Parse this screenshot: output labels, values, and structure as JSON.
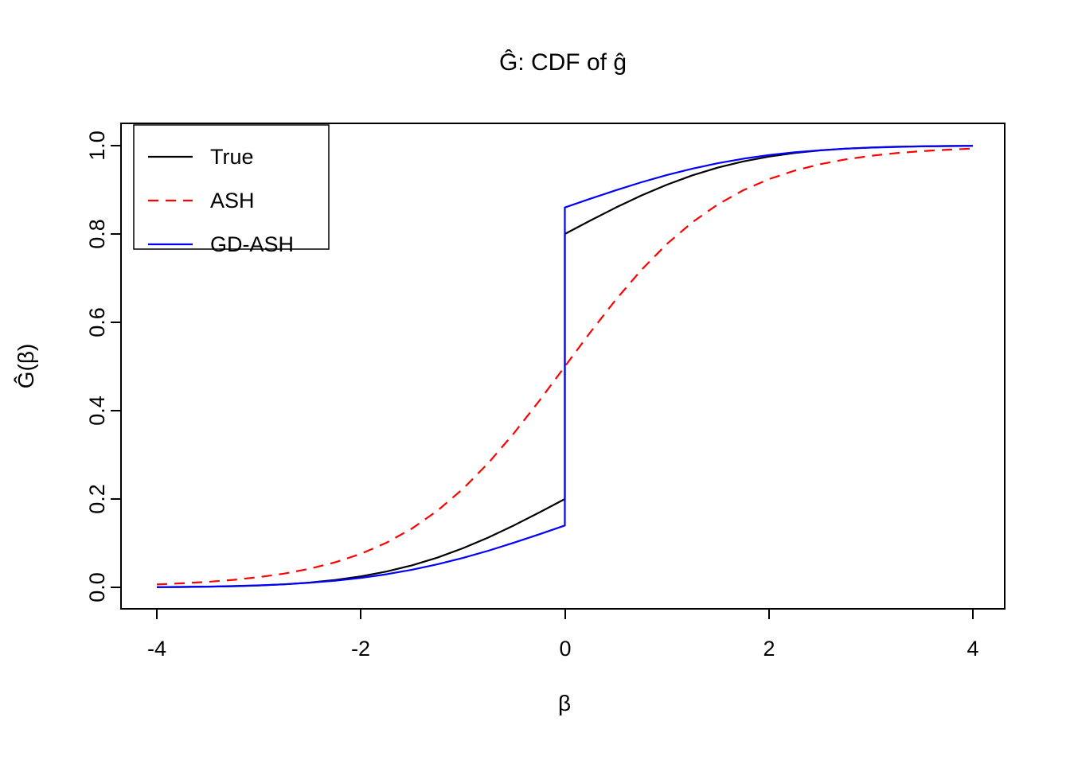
{
  "title": "Ĝ: CDF of ĝ",
  "colors": {
    "true": "#000000",
    "ash": "#ff0000",
    "gd_ash": "#0000ff",
    "background": "#ffffff",
    "axis": "#000000"
  },
  "chart_data": {
    "type": "line",
    "title": "Ĝ: CDF of ĝ",
    "xlabel": "β",
    "ylabel": "Ĝ(β)",
    "xlim": [
      -4,
      4
    ],
    "ylim": [
      0,
      1
    ],
    "grid": false,
    "x_ticks": [
      -4,
      -2,
      0,
      2,
      4
    ],
    "y_ticks": [
      0.0,
      0.2,
      0.4,
      0.6,
      0.8,
      1.0
    ],
    "x_tick_labels": [
      "-4",
      "-2",
      "0",
      "2",
      "4"
    ],
    "y_tick_labels": [
      "0.0",
      "0.2",
      "0.4",
      "0.6",
      "0.8",
      "1.0"
    ],
    "legend": {
      "position": "top-left",
      "entries": [
        "True",
        "ASH",
        "GD-ASH"
      ]
    },
    "series": [
      {
        "name": "True",
        "color": "#000000",
        "dash": "solid",
        "description": "Step CDF with point mass at 0: jumps from 0.2 to 0.8",
        "points": [
          [
            -4,
            0.0004
          ],
          [
            -3.75,
            0.0008
          ],
          [
            -3.5,
            0.0014
          ],
          [
            -3.25,
            0.0025
          ],
          [
            -3,
            0.0042
          ],
          [
            -2.75,
            0.0069
          ],
          [
            -2.5,
            0.0109
          ],
          [
            -2.25,
            0.0167
          ],
          [
            -2,
            0.0248
          ],
          [
            -1.75,
            0.0357
          ],
          [
            -1.5,
            0.0497
          ],
          [
            -1.25,
            0.0672
          ],
          [
            -1,
            0.0884
          ],
          [
            -0.75,
            0.1128
          ],
          [
            -0.5,
            0.1401
          ],
          [
            -0.25,
            0.1695
          ],
          [
            0,
            0.2
          ],
          [
            0,
            0.8
          ],
          [
            0.25,
            0.8305
          ],
          [
            0.5,
            0.8599
          ],
          [
            0.75,
            0.8872
          ],
          [
            1,
            0.9116
          ],
          [
            1.25,
            0.9328
          ],
          [
            1.5,
            0.9503
          ],
          [
            1.75,
            0.9643
          ],
          [
            2,
            0.9752
          ],
          [
            2.25,
            0.9833
          ],
          [
            2.5,
            0.9891
          ],
          [
            2.75,
            0.9931
          ],
          [
            3,
            0.9958
          ],
          [
            3.25,
            0.9975
          ],
          [
            3.5,
            0.9986
          ],
          [
            3.75,
            0.9992
          ],
          [
            4,
            0.9996
          ]
        ]
      },
      {
        "name": "ASH",
        "color": "#ff0000",
        "dash": "dashed",
        "description": "Smooth sigmoid CDF through (0, 0.5), no point mass",
        "points": [
          [
            -4,
            0.0067
          ],
          [
            -3.75,
            0.0091
          ],
          [
            -3.5,
            0.0124
          ],
          [
            -3.25,
            0.0169
          ],
          [
            -3,
            0.023
          ],
          [
            -2.75,
            0.0312
          ],
          [
            -2.5,
            0.0421
          ],
          [
            -2.25,
            0.0567
          ],
          [
            -2,
            0.0759
          ],
          [
            -1.75,
            0.1009
          ],
          [
            -1.5,
            0.133
          ],
          [
            -1.25,
            0.1733
          ],
          [
            -1,
            0.2227
          ],
          [
            -0.75,
            0.2814
          ],
          [
            -0.5,
            0.3487
          ],
          [
            -0.25,
            0.4225
          ],
          [
            0,
            0.5
          ],
          [
            0.25,
            0.5775
          ],
          [
            0.5,
            0.6513
          ],
          [
            0.75,
            0.7186
          ],
          [
            1,
            0.7773
          ],
          [
            1.25,
            0.8267
          ],
          [
            1.5,
            0.867
          ],
          [
            1.75,
            0.8991
          ],
          [
            2,
            0.9241
          ],
          [
            2.25,
            0.9433
          ],
          [
            2.5,
            0.9579
          ],
          [
            2.75,
            0.9688
          ],
          [
            3,
            0.977
          ],
          [
            3.25,
            0.9831
          ],
          [
            3.5,
            0.9876
          ],
          [
            3.75,
            0.9909
          ],
          [
            4,
            0.9933
          ]
        ]
      },
      {
        "name": "GD-ASH",
        "color": "#0000ff",
        "dash": "solid",
        "description": "Step CDF with point mass at 0: jumps from 0.14 to 0.86",
        "points": [
          [
            -4,
            0.0006
          ],
          [
            -3.75,
            0.001
          ],
          [
            -3.5,
            0.0017
          ],
          [
            -3.25,
            0.0028
          ],
          [
            -3,
            0.0045
          ],
          [
            -2.75,
            0.0069
          ],
          [
            -2.5,
            0.0104
          ],
          [
            -2.25,
            0.0151
          ],
          [
            -2,
            0.0214
          ],
          [
            -1.75,
            0.0296
          ],
          [
            -1.5,
            0.0398
          ],
          [
            -1.25,
            0.0521
          ],
          [
            -1,
            0.0665
          ],
          [
            -0.75,
            0.0829
          ],
          [
            -0.5,
            0.101
          ],
          [
            -0.25,
            0.1201
          ],
          [
            0,
            0.14
          ],
          [
            0,
            0.86
          ],
          [
            0.25,
            0.8799
          ],
          [
            0.5,
            0.899
          ],
          [
            0.75,
            0.9171
          ],
          [
            1,
            0.9335
          ],
          [
            1.25,
            0.9479
          ],
          [
            1.5,
            0.9602
          ],
          [
            1.75,
            0.9704
          ],
          [
            2,
            0.9786
          ],
          [
            2.25,
            0.9849
          ],
          [
            2.5,
            0.9896
          ],
          [
            2.75,
            0.9931
          ],
          [
            3,
            0.9955
          ],
          [
            3.25,
            0.9972
          ],
          [
            3.5,
            0.9983
          ],
          [
            3.75,
            0.999
          ],
          [
            4,
            0.9994
          ]
        ]
      }
    ]
  }
}
